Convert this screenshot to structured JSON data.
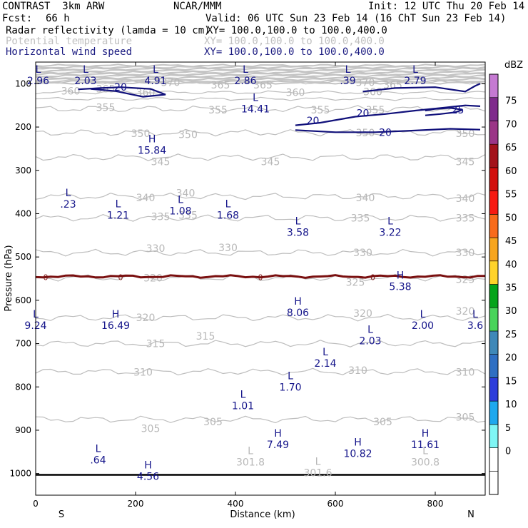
{
  "header": {
    "experiment": "CONTRAST  3km ARW",
    "center": "NCAR/MMM",
    "init": "Init: 12 UTC Thu 20 Feb 14",
    "fcst_label": "Fcst:",
    "fcst_value": "66 h",
    "valid": "Valid: 06 UTC Sun 23 Feb 14 (16 ChT Sun 23 Feb 14)",
    "fields": [
      {
        "name": "Radar reflectivity (lamda = 10 cm)",
        "xy": "XY= 100.0,100.0 to 100.0,400.0",
        "color": "#000000"
      },
      {
        "name": "Potential temperature",
        "xy": "XY= 100.0,100.0 to 100.0,400.0",
        "color": "#c0c0c0"
      },
      {
        "name": "Horizontal wind speed",
        "xy": "XY= 100.0,100.0 to 100.0,400.0",
        "color": "#1a1a80"
      }
    ]
  },
  "chart_data": {
    "type": "cross-section contour",
    "xlabel": "Distance (km)",
    "ylabel": "Pressure (hPa)",
    "x_ticks": [
      "0",
      "200",
      "400",
      "600",
      "800"
    ],
    "y_ticks": [
      "100",
      "200",
      "300",
      "400",
      "500",
      "600",
      "700",
      "800",
      "900",
      "1000"
    ],
    "xlim": [
      0,
      900
    ],
    "ylim": [
      1050,
      50
    ],
    "endpoints": {
      "left": "S",
      "right": "N"
    },
    "theta_contours": [
      {
        "value": 370,
        "p": 97
      },
      {
        "value": 365,
        "p": 120
      },
      {
        "value": 360,
        "p": 135
      },
      {
        "value": 355,
        "p": 158
      },
      {
        "value": 350,
        "p": 213
      },
      {
        "value": 345,
        "p": 270
      },
      {
        "value": 340,
        "p": 360
      },
      {
        "value": 335,
        "p": 410
      },
      {
        "value": 330,
        "p": 490
      },
      {
        "value": 325,
        "p": 548
      },
      {
        "value": 320,
        "p": 640
      },
      {
        "value": 315,
        "p": 700
      },
      {
        "value": 310,
        "p": 765
      },
      {
        "value": 305,
        "p": 875
      }
    ],
    "theta_labels": [
      {
        "text": "370",
        "x": 270,
        "p": 97
      },
      {
        "text": "370",
        "x": 660,
        "p": 97
      },
      {
        "text": "360",
        "x": 70,
        "p": 117
      },
      {
        "text": "365",
        "x": 140,
        "p": 112
      },
      {
        "text": "360",
        "x": 220,
        "p": 120
      },
      {
        "text": "365",
        "x": 370,
        "p": 103
      },
      {
        "text": "365",
        "x": 455,
        "p": 103
      },
      {
        "text": "360",
        "x": 520,
        "p": 120
      },
      {
        "text": "365",
        "x": 715,
        "p": 103
      },
      {
        "text": "360",
        "x": 675,
        "p": 118
      },
      {
        "text": "355",
        "x": 140,
        "p": 155
      },
      {
        "text": "355",
        "x": 365,
        "p": 160
      },
      {
        "text": "355",
        "x": 570,
        "p": 160
      },
      {
        "text": "355",
        "x": 680,
        "p": 160
      },
      {
        "text": "350",
        "x": 210,
        "p": 215
      },
      {
        "text": "350",
        "x": 305,
        "p": 217
      },
      {
        "text": "350",
        "x": 660,
        "p": 213
      },
      {
        "text": "350",
        "x": 860,
        "p": 215
      },
      {
        "text": "345",
        "x": 250,
        "p": 280
      },
      {
        "text": "345",
        "x": 470,
        "p": 280
      },
      {
        "text": "345",
        "x": 860,
        "p": 280
      },
      {
        "text": "340",
        "x": 220,
        "p": 363
      },
      {
        "text": "340",
        "x": 300,
        "p": 352
      },
      {
        "text": "340",
        "x": 660,
        "p": 363
      },
      {
        "text": "340",
        "x": 860,
        "p": 365
      },
      {
        "text": "335",
        "x": 250,
        "p": 407
      },
      {
        "text": "335",
        "x": 305,
        "p": 403
      },
      {
        "text": "335",
        "x": 650,
        "p": 410
      },
      {
        "text": "335",
        "x": 860,
        "p": 410
      },
      {
        "text": "330",
        "x": 240,
        "p": 480
      },
      {
        "text": "330",
        "x": 385,
        "p": 478
      },
      {
        "text": "330",
        "x": 655,
        "p": 490
      },
      {
        "text": "330",
        "x": 860,
        "p": 490
      },
      {
        "text": "325",
        "x": 640,
        "p": 558
      },
      {
        "text": "325",
        "x": 860,
        "p": 552
      },
      {
        "text": "320",
        "x": 235,
        "p": 548
      },
      {
        "text": "320",
        "x": 220,
        "p": 640
      },
      {
        "text": "320",
        "x": 655,
        "p": 630
      },
      {
        "text": "320",
        "x": 860,
        "p": 625
      },
      {
        "text": "315",
        "x": 240,
        "p": 700
      },
      {
        "text": "315",
        "x": 340,
        "p": 683
      },
      {
        "text": "310",
        "x": 215,
        "p": 766
      },
      {
        "text": "310",
        "x": 645,
        "p": 762
      },
      {
        "text": "310",
        "x": 860,
        "p": 766
      },
      {
        "text": "305",
        "x": 230,
        "p": 896
      },
      {
        "text": "305",
        "x": 355,
        "p": 880
      },
      {
        "text": "305",
        "x": 695,
        "p": 880
      },
      {
        "text": "305",
        "x": 860,
        "p": 870
      }
    ],
    "wind_speed_contours": [
      {
        "value": 20,
        "segments": "jet core near 100-130 hPa and 160-210 hPa"
      },
      {
        "value": 25,
        "segments": "near 175 hPa, x 780-850 km"
      }
    ],
    "wind_labels": [
      {
        "text": "20",
        "x": 170,
        "p": 108
      },
      {
        "text": "20",
        "x": 555,
        "p": 185
      },
      {
        "text": "20",
        "x": 655,
        "p": 168
      },
      {
        "text": "20",
        "x": 700,
        "p": 212
      },
      {
        "text": "25",
        "x": 845,
        "p": 160
      }
    ],
    "reflectivity_contour": {
      "value": 0,
      "p": 545,
      "label": "0"
    },
    "surface_p": 1003,
    "extrema": [
      {
        "type": "L",
        "value": "2.96",
        "x": 5,
        "p": 85
      },
      {
        "type": "L",
        "value": "2.03",
        "x": 100,
        "p": 85
      },
      {
        "type": "L",
        "value": "4.91",
        "x": 240,
        "p": 85
      },
      {
        "type": "L",
        "value": "2.86",
        "x": 420,
        "p": 85
      },
      {
        "type": "L",
        "value": ".39",
        "x": 625,
        "p": 85
      },
      {
        "type": "L",
        "value": "2.79",
        "x": 760,
        "p": 85
      },
      {
        "type": "L",
        "value": "14.41",
        "x": 440,
        "p": 150
      },
      {
        "type": "H",
        "value": "15.84",
        "x": 233,
        "p": 245
      },
      {
        "type": "L",
        "value": ".23",
        "x": 65,
        "p": 370
      },
      {
        "type": "L",
        "value": "1.21",
        "x": 165,
        "p": 395
      },
      {
        "type": "L",
        "value": "1.08",
        "x": 290,
        "p": 385
      },
      {
        "type": "L",
        "value": "1.68",
        "x": 385,
        "p": 395
      },
      {
        "type": "L",
        "value": "3.58",
        "x": 525,
        "p": 435
      },
      {
        "type": "L",
        "value": "3.22",
        "x": 710,
        "p": 435
      },
      {
        "type": "H",
        "value": "5.38",
        "x": 730,
        "p": 560
      },
      {
        "type": "H",
        "value": "8.06",
        "x": 525,
        "p": 620
      },
      {
        "type": "L",
        "value": "9.24",
        "x": 0,
        "p": 650
      },
      {
        "type": "H",
        "value": "16.49",
        "x": 160,
        "p": 650
      },
      {
        "type": "L",
        "value": "2.00",
        "x": 775,
        "p": 650
      },
      {
        "type": "L",
        "value": "3.6",
        "x": 880,
        "p": 650
      },
      {
        "type": "L",
        "value": "2.03",
        "x": 670,
        "p": 685
      },
      {
        "type": "L",
        "value": "2.14",
        "x": 580,
        "p": 737
      },
      {
        "type": "L",
        "value": "1.70",
        "x": 510,
        "p": 792
      },
      {
        "type": "L",
        "value": "1.01",
        "x": 415,
        "p": 835
      },
      {
        "type": "H",
        "value": "7.49",
        "x": 485,
        "p": 925
      },
      {
        "type": "H",
        "value": "10.82",
        "x": 645,
        "p": 945
      },
      {
        "type": "H",
        "value": "11.61",
        "x": 780,
        "p": 925
      },
      {
        "type": "L",
        "value": ".64",
        "x": 125,
        "p": 960
      },
      {
        "type": "L",
        "value": "301.8",
        "x": 430,
        "p": 965,
        "grey": true
      },
      {
        "type": "L",
        "value": "300.8",
        "x": 780,
        "p": 965,
        "grey": true
      },
      {
        "type": "L",
        "value": "301.6",
        "x": 565,
        "p": 990,
        "grey": true
      },
      {
        "type": "H",
        "value": "4.56",
        "x": 225,
        "p": 998
      }
    ],
    "colorbar": {
      "unit": "dBZ",
      "levels": [
        "-5",
        "0",
        "5",
        "10",
        "15",
        "20",
        "25",
        "30",
        "35",
        "40",
        "45",
        "50",
        "55",
        "60",
        "65",
        "70",
        "75"
      ],
      "tick_labels": [
        "0",
        "5",
        "10",
        "15",
        "20",
        "25",
        "30",
        "35",
        "40",
        "45",
        "50",
        "55",
        "60",
        "65",
        "70",
        "75"
      ],
      "colors": [
        "#ffffff",
        "#ffffff",
        "#7ff6f5",
        "#1ea8ee",
        "#2e3ddb",
        "#2f6fc3",
        "#3f88b8",
        "#49d45a",
        "#05a41a",
        "#ffd32a",
        "#f7a51e",
        "#f86b1b",
        "#f71a12",
        "#d20f0e",
        "#a3121b",
        "#9b3587",
        "#7f2a8c",
        "#c57ad2"
      ]
    }
  }
}
